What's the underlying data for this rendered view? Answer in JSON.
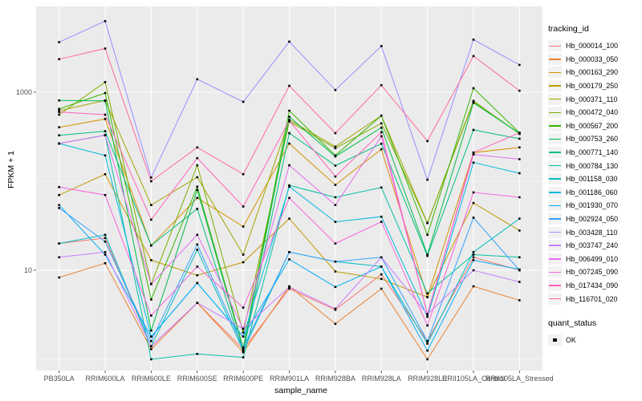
{
  "colors": {
    "panel_bg": "#EBEBEB",
    "grid": "#FFFFFF",
    "axis_text": "#4D4D4D",
    "tick_mark": "#333333",
    "point": "#000000",
    "legend_key_bg": "#F2F2F2"
  },
  "chart_data": {
    "type": "line",
    "title": "",
    "xlabel": "sample_name",
    "ylabel": "FPKM + 1",
    "y_scale": "log10",
    "y_tick_values": [
      10,
      1000
    ],
    "y_tick_labels": [
      "10",
      "1000"
    ],
    "y_minor_values": [
      1,
      100
    ],
    "ylim_log10": [
      -0.1,
      3.96
    ],
    "grid": true,
    "legend_position": "right",
    "legend_titles": [
      "tracking_id",
      "quant_status"
    ],
    "quant_status_entries": [
      "OK"
    ],
    "categories": [
      "PB350LA",
      "RRIM600LA",
      "RRIM600LE",
      "RRIM600SE",
      "RRIM600PE",
      "RRIM901LA",
      "RRIM928BA",
      "RRIM928LA",
      "RRIM928LE",
      "RRII105LA_Control",
      "RRII105LA_Stressed"
    ],
    "series": [
      {
        "name": "Hb_000014_100",
        "color": "#F8766D",
        "values": [
          20,
          23,
          1.4,
          4.3,
          1.3,
          6.2,
          3.6,
          9,
          1.6,
          14,
          10
        ]
      },
      {
        "name": "Hb_000033_050",
        "color": "#EA8331",
        "values": [
          8.3,
          12,
          1.3,
          4.3,
          1.2,
          6.6,
          2.5,
          6.2,
          1.0,
          6.6,
          4.6
        ]
      },
      {
        "name": "Hb_000163_290",
        "color": "#D89000",
        "values": [
          404,
          500,
          19,
          65,
          31,
          265,
          91,
          229,
          5,
          210,
          240
        ]
      },
      {
        "name": "Hb_000179_250",
        "color": "#C09B00",
        "values": [
          70,
          120,
          13,
          8.8,
          12.3,
          38,
          9.7,
          8,
          5,
          57,
          28
        ]
      },
      {
        "name": "Hb_000371_110",
        "color": "#A3A500",
        "values": [
          620,
          810,
          54,
          111,
          15,
          490,
          245,
          546,
          34,
          780,
          345
        ]
      },
      {
        "name": "Hb_000472_040",
        "color": "#7CAE00",
        "values": [
          560,
          1300,
          7,
          151,
          2.0,
          470,
          235,
          447,
          34,
          800,
          340
        ]
      },
      {
        "name": "Hb_000567_200",
        "color": "#39B600",
        "values": [
          650,
          980,
          4.7,
          87,
          1.35,
          620,
          195,
          546,
          25,
          1110,
          350
        ]
      },
      {
        "name": "Hb_000753_260",
        "color": "#00BB4E",
        "values": [
          810,
          800,
          2.1,
          80,
          1.3,
          530,
          190,
          400,
          15,
          760,
          345
        ]
      },
      {
        "name": "Hb_000771_140",
        "color": "#00BF7D",
        "values": [
          328,
          365,
          19,
          49,
          1.2,
          347,
          150,
          264,
          14.5,
          377,
          300
        ]
      },
      {
        "name": "Hb_000784_130",
        "color": "#00C1A3",
        "values": [
          265,
          330,
          1.0,
          1.15,
          1.05,
          90,
          66,
          85,
          5.5,
          15,
          14
        ]
      },
      {
        "name": "Hb_001158_030",
        "color": "#00BFC4",
        "values": [
          20,
          25,
          1.4,
          17,
          1.25,
          16,
          12.5,
          11,
          1.5,
          16,
          38
        ]
      },
      {
        "name": "Hb_001186_060",
        "color": "#00BAE0",
        "values": [
          265,
          195,
          1.8,
          7.2,
          1.8,
          87,
          35,
          40,
          3,
          162,
          123
        ]
      },
      {
        "name": "Hb_001930_070",
        "color": "#00B0F6",
        "values": [
          54,
          15,
          1.8,
          7.2,
          1.8,
          13.3,
          6.5,
          11,
          1.25,
          13,
          10.2
        ]
      },
      {
        "name": "Hb_002924_050",
        "color": "#35A2FF",
        "values": [
          50,
          21,
          1.6,
          19.5,
          1.35,
          16,
          12.5,
          14,
          1.6,
          39,
          10
        ]
      },
      {
        "name": "Hb_003428_110",
        "color": "#9590FF",
        "values": [
          3650,
          6300,
          110,
          1400,
          780,
          3700,
          1060,
          3300,
          104,
          3900,
          2030
        ]
      },
      {
        "name": "Hb_003747_240",
        "color": "#C77CFF",
        "values": [
          14,
          16,
          1.4,
          4.3,
          2.2,
          6.5,
          3.7,
          14,
          3.2,
          10,
          7.4
        ]
      },
      {
        "name": "Hb_006499_010",
        "color": "#E76BF3",
        "values": [
          265,
          328,
          7,
          25,
          2.2,
          151,
          54,
          320,
          3.2,
          200,
          177
        ]
      },
      {
        "name": "Hb_007245_090",
        "color": "#FA62DB",
        "values": [
          86,
          70,
          3.1,
          11,
          3.8,
          65,
          20,
          35,
          2.4,
          75,
          66
        ]
      },
      {
        "name": "Hb_017434_090",
        "color": "#FF62BC",
        "values": [
          600,
          560,
          37,
          182,
          52,
          480,
          113,
          355,
          3.2,
          210,
          350
        ]
      },
      {
        "name": "Hb_116701_020",
        "color": "#FF6A98",
        "values": [
          2350,
          3100,
          100,
          240,
          120,
          1180,
          347,
          1200,
          283,
          2550,
          1040
        ]
      }
    ]
  }
}
